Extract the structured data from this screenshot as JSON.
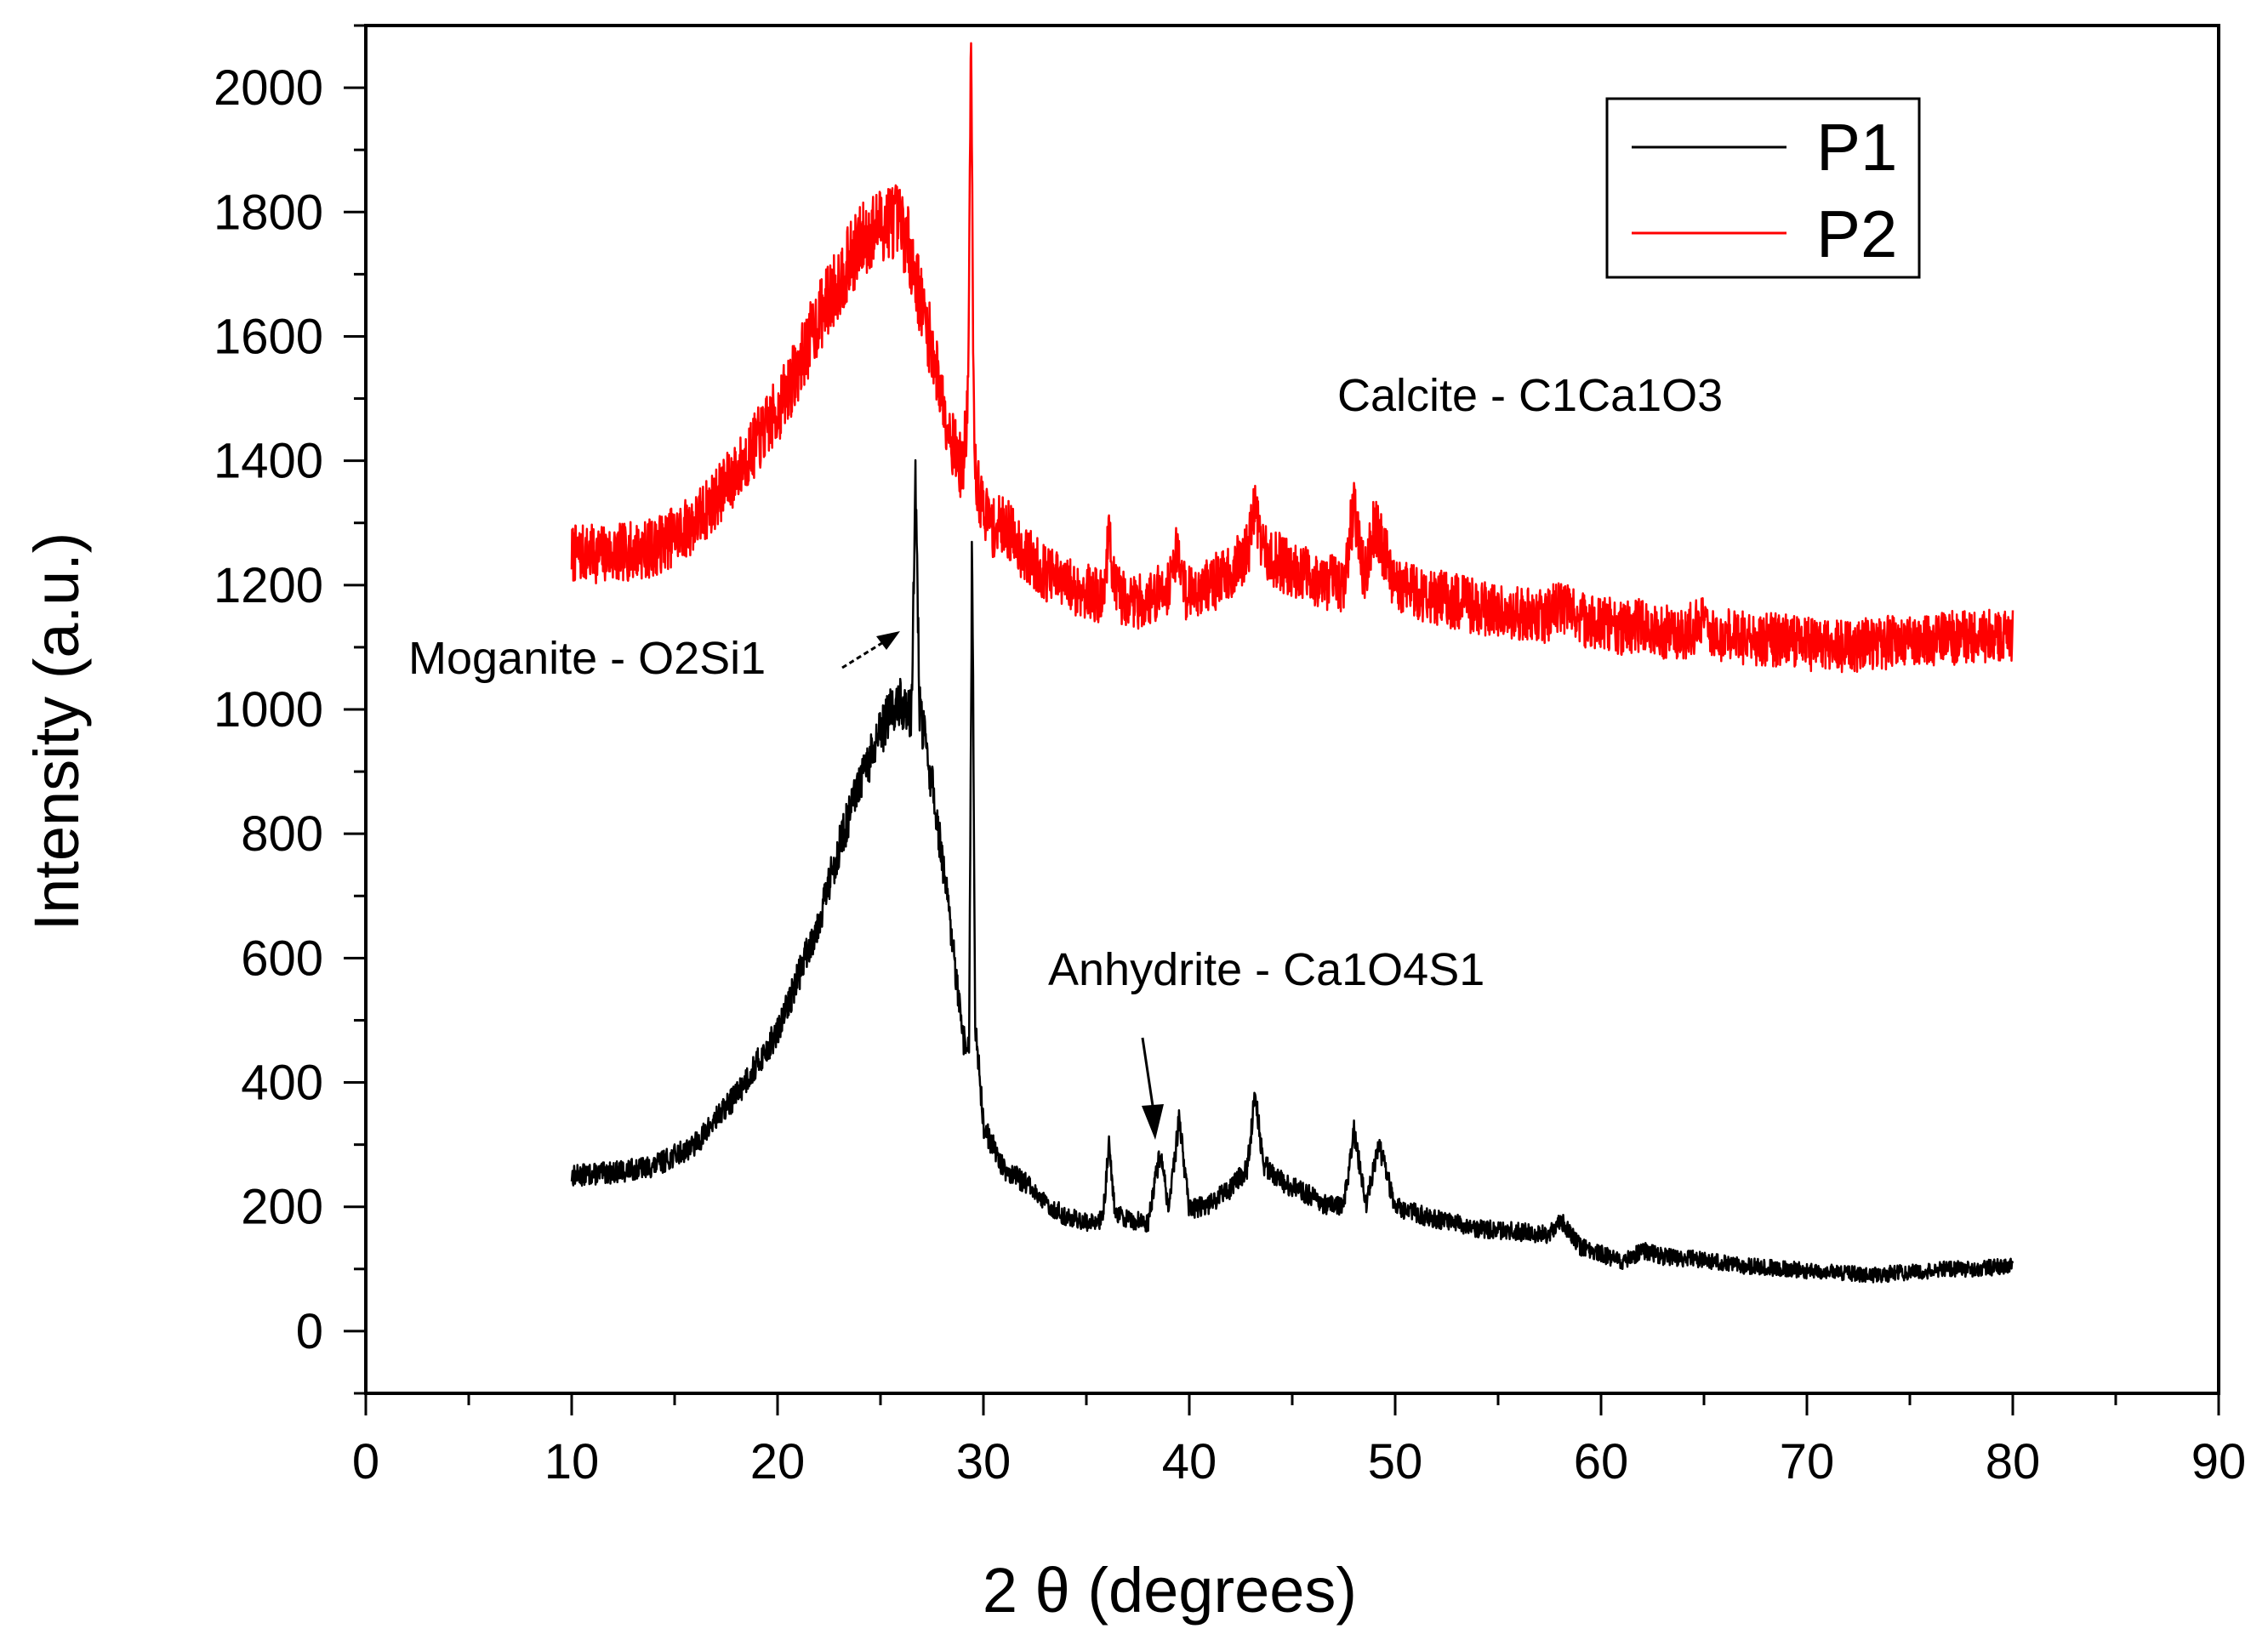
{
  "chart_data": {
    "type": "line",
    "title": "",
    "xlabel": "2 θ (degrees)",
    "ylabel": "Intensity (a.u.)",
    "xlim": [
      0,
      90
    ],
    "ylim": [
      -100,
      2100
    ],
    "xticks": [
      0,
      10,
      20,
      30,
      40,
      50,
      60,
      70,
      80,
      90
    ],
    "xtick_labels": [
      "0",
      "10",
      "20",
      "30",
      "40",
      "50",
      "60",
      "70",
      "80",
      "90"
    ],
    "yticks": [
      0,
      200,
      400,
      600,
      800,
      1000,
      1200,
      1400,
      1600,
      1800,
      2000
    ],
    "ytick_labels": [
      "0",
      "200",
      "400",
      "600",
      "800",
      "1000",
      "1200",
      "1400",
      "1600",
      "1800",
      "2000"
    ],
    "grid": false,
    "legend_position": "top-right",
    "series": [
      {
        "name": "P1",
        "color": "#000000",
        "x": [
          10,
          12,
          14,
          16,
          18,
          20,
          21,
          22,
          23,
          24,
          25,
          25.5,
          26,
          26.5,
          26.7,
          26.9,
          27.5,
          28,
          28.5,
          29,
          29.3,
          29.45,
          29.6,
          30,
          31,
          32,
          33,
          34,
          35,
          35.8,
          36.1,
          36.4,
          37,
          38,
          38.6,
          39,
          39.5,
          40,
          41,
          42,
          42.8,
          43.2,
          43.6,
          44.5,
          45.5,
          46.5,
          47.5,
          48,
          48.6,
          49.2,
          50,
          52,
          54,
          56,
          57.5,
          58,
          59,
          60,
          61,
          62,
          63,
          65,
          67,
          69,
          71,
          73,
          75,
          77,
          78,
          80
        ],
        "y": [
          250,
          255,
          265,
          300,
          380,
          480,
          570,
          660,
          780,
          880,
          960,
          1000,
          1010,
          990,
          1370,
          1000,
          880,
          760,
          620,
          470,
          450,
          1280,
          500,
          330,
          260,
          240,
          205,
          185,
          175,
          180,
          300,
          190,
          180,
          175,
          290,
          190,
          340,
          195,
          205,
          230,
          260,
          380,
          270,
          240,
          225,
          205,
          200,
          320,
          205,
          300,
          200,
          180,
          165,
          160,
          155,
          180,
          135,
          125,
          110,
          130,
          120,
          115,
          105,
          100,
          95,
          90,
          95,
          100,
          100,
          105
        ]
      },
      {
        "name": "P2",
        "color": "#ff0000",
        "x": [
          10,
          12,
          14,
          16,
          18,
          20,
          21,
          22,
          23,
          24,
          25,
          25.5,
          26,
          26.5,
          27,
          27.5,
          28,
          28.5,
          29,
          29.25,
          29.4,
          29.55,
          29.8,
          30.5,
          31,
          32,
          33,
          34,
          35,
          35.8,
          36.1,
          36.4,
          37,
          38,
          39,
          39.4,
          39.8,
          40.5,
          41,
          42,
          42.8,
          43.2,
          43.6,
          44.5,
          45.5,
          46.5,
          47.5,
          48,
          48.5,
          49,
          50,
          52,
          54,
          56,
          57.5,
          58,
          59,
          60,
          61,
          62,
          63,
          64,
          64.8,
          65.5,
          67,
          69,
          71,
          73,
          75,
          77,
          78,
          80
        ],
        "y": [
          1250,
          1250,
          1260,
          1300,
          1380,
          1480,
          1550,
          1630,
          1690,
          1750,
          1780,
          1790,
          1780,
          1730,
          1650,
          1580,
          1500,
          1430,
          1380,
          1500,
          2070,
          1400,
          1340,
          1290,
          1300,
          1250,
          1220,
          1200,
          1190,
          1180,
          1280,
          1190,
          1175,
          1175,
          1200,
          1260,
          1190,
          1195,
          1200,
          1220,
          1250,
          1330,
          1250,
          1235,
          1220,
          1205,
          1200,
          1330,
          1210,
          1300,
          1200,
          1180,
          1165,
          1155,
          1150,
          1170,
          1145,
          1140,
          1130,
          1135,
          1125,
          1120,
          1140,
          1120,
          1115,
          1110,
          1100,
          1105,
          1110,
          1115,
          1115,
          1120
        ]
      }
    ],
    "annotations": [
      {
        "id": "moganite",
        "text": "Moganite - O2Si1",
        "x": 26.5,
        "y": 1140
      },
      {
        "id": "calcite",
        "text": "Calcite - C1Ca1O3",
        "x": 0,
        "y": 0
      },
      {
        "id": "anhydrite",
        "text": "Anhydrite - Ca1O4S1",
        "x": 38.4,
        "y": 310
      }
    ]
  }
}
